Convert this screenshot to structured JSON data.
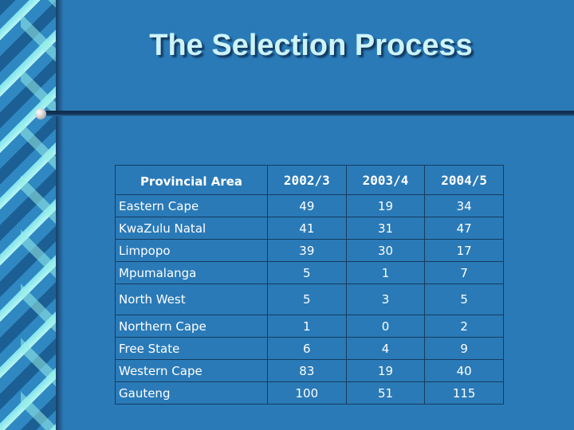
{
  "title": "The Selection Process",
  "table": {
    "headers": [
      "Provincial Area",
      "2002/3",
      "2003/4",
      "2004/5"
    ],
    "rows": [
      {
        "area": "Eastern Cape",
        "v1": "49",
        "v2": "19",
        "v3": "34"
      },
      {
        "area": "KwaZulu Natal",
        "v1": "41",
        "v2": "31",
        "v3": "47"
      },
      {
        "area": "Limpopo",
        "v1": "39",
        "v2": "30",
        "v3": "17"
      },
      {
        "area": "Mpumalanga",
        "v1": "5",
        "v2": "1",
        "v3": "7"
      },
      {
        "area": "North West",
        "v1": "5",
        "v2": "3",
        "v3": "5"
      },
      {
        "area": "Northern Cape",
        "v1": "1",
        "v2": "0",
        "v3": "2"
      },
      {
        "area": "Free State",
        "v1": "6",
        "v2": "4",
        "v3": "9"
      },
      {
        "area": "Western Cape",
        "v1": "83",
        "v2": "19",
        "v3": "40"
      },
      {
        "area": "Gauteng",
        "v1": "100",
        "v2": "51",
        "v3": "115"
      }
    ]
  }
}
